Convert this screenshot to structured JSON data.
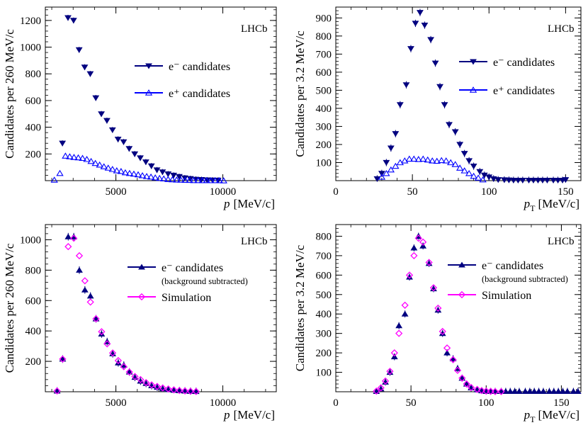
{
  "chart_data": [
    {
      "type": "scatter",
      "id": "top-left",
      "xlabel_main": "p",
      "xlabel_unit": "[MeV/c]",
      "ylabel": "Candidates per 260 MeV/c",
      "xlim": [
        1700,
        12500
      ],
      "ylim": [
        0,
        1300
      ],
      "xticks": [
        5000,
        10000
      ],
      "xtick_labels": [
        "5000",
        "10000"
      ],
      "yticks": [
        200,
        400,
        600,
        800,
        1000,
        1200
      ],
      "ytick_labels": [
        "200",
        "400",
        "600",
        "800",
        "1000",
        "1200"
      ],
      "lhcb": "LHCb",
      "legend": [
        {
          "label": "e⁻ candidates",
          "sub": "",
          "marker": "tri-down-filled",
          "color": "#000080"
        },
        {
          "label": "e⁺ candidates",
          "sub": "",
          "marker": "tri-up-open",
          "color": "#0000ff"
        }
      ],
      "series": [
        {
          "name": "e⁻ candidates",
          "marker": "tri-down-filled",
          "color": "#000080",
          "err": 22,
          "x": [
            2500,
            2760,
            3020,
            3280,
            3540,
            3800,
            4060,
            4320,
            4580,
            4840,
            5100,
            5360,
            5620,
            5880,
            6140,
            6400,
            6660,
            6920,
            7180,
            7440,
            7700,
            7960,
            8220,
            8480,
            8740,
            9000,
            9260,
            9520,
            9780
          ],
          "y": [
            280,
            1220,
            1200,
            980,
            850,
            800,
            620,
            500,
            450,
            380,
            310,
            290,
            240,
            200,
            170,
            140,
            110,
            80,
            65,
            50,
            40,
            30,
            20,
            15,
            10,
            8,
            5,
            4,
            3
          ]
        },
        {
          "name": "e⁺ candidates",
          "marker": "tri-up-open",
          "color": "#0000ff",
          "err": 0,
          "x": [
            2120,
            2380,
            2640,
            2840,
            3040,
            3240,
            3440,
            3640,
            3840,
            4040,
            4240,
            4440,
            4640,
            4840,
            5040,
            5240,
            5440,
            5640,
            5840,
            6040,
            6240,
            6440,
            6640,
            6840,
            7040,
            7240,
            7440,
            7640,
            7840,
            8040,
            8240,
            8440,
            8640,
            8840,
            9040,
            9240,
            9440,
            9640,
            9840,
            10040
          ],
          "y": [
            5,
            55,
            185,
            180,
            175,
            172,
            168,
            160,
            145,
            130,
            118,
            105,
            95,
            85,
            75,
            70,
            60,
            55,
            50,
            45,
            38,
            32,
            28,
            22,
            18,
            14,
            10,
            8,
            6,
            5,
            4,
            3,
            2,
            2,
            1,
            1,
            1,
            1,
            1,
            0
          ]
        }
      ]
    },
    {
      "type": "scatter",
      "id": "top-right",
      "xlabel_main": "p",
      "xlabel_sub": "T",
      "xlabel_unit": "[MeV/c]",
      "ylabel": "Candidates per 3.2 MeV/c",
      "xlim": [
        0,
        160
      ],
      "ylim": [
        0,
        960
      ],
      "xticks": [
        0,
        50,
        100,
        150
      ],
      "xtick_labels": [
        "0",
        "50",
        "100",
        "150"
      ],
      "yticks": [
        100,
        200,
        300,
        400,
        500,
        600,
        700,
        800,
        900
      ],
      "ytick_labels": [
        "100",
        "200",
        "300",
        "400",
        "500",
        "600",
        "700",
        "800",
        "900"
      ],
      "lhcb": "LHCb",
      "legend": [
        {
          "label": "e⁻ candidates",
          "sub": "",
          "marker": "tri-down-filled",
          "color": "#000080"
        },
        {
          "label": "e⁺ candidates",
          "sub": "",
          "marker": "tri-up-open",
          "color": "#0000ff"
        }
      ],
      "series": [
        {
          "name": "e⁻ candidates",
          "marker": "tri-down-filled",
          "color": "#000080",
          "err": 20,
          "x": [
            27,
            30,
            33,
            36,
            39,
            42,
            46,
            49,
            52,
            55,
            58,
            62,
            65,
            68,
            71,
            74,
            78,
            81,
            84,
            87,
            90,
            94,
            97,
            100,
            103,
            106,
            110,
            113,
            116,
            119,
            122,
            126,
            129,
            132,
            135,
            138,
            142,
            145,
            148,
            150
          ],
          "y": [
            10,
            40,
            100,
            180,
            260,
            420,
            530,
            730,
            870,
            930,
            860,
            780,
            650,
            520,
            420,
            310,
            270,
            200,
            150,
            110,
            80,
            50,
            30,
            20,
            10,
            5,
            4,
            3,
            2,
            2,
            2,
            2,
            2,
            2,
            2,
            2,
            2,
            2,
            2,
            5
          ]
        },
        {
          "name": "e⁺ candidates",
          "marker": "tri-up-open",
          "color": "#0000ff",
          "err": 0,
          "x": [
            30,
            33,
            36,
            39,
            42,
            45,
            48,
            51,
            54,
            57,
            60,
            63,
            66,
            69,
            72,
            75,
            78,
            81,
            84,
            87,
            90,
            93,
            96
          ],
          "y": [
            20,
            40,
            60,
            80,
            100,
            110,
            120,
            120,
            118,
            120,
            115,
            110,
            108,
            112,
            110,
            100,
            90,
            70,
            55,
            40,
            25,
            15,
            5
          ]
        }
      ]
    },
    {
      "type": "scatter",
      "id": "bottom-left",
      "xlabel_main": "p",
      "xlabel_unit": "[MeV/c]",
      "ylabel": "Candidates per 260 MeV/c",
      "xlim": [
        1700,
        12500
      ],
      "ylim": [
        0,
        1100
      ],
      "xticks": [
        5000,
        10000
      ],
      "xtick_labels": [
        "5000",
        "10000"
      ],
      "yticks": [
        200,
        400,
        600,
        800,
        1000
      ],
      "ytick_labels": [
        "200",
        "400",
        "600",
        "800",
        "1000"
      ],
      "lhcb": "LHCb",
      "legend": [
        {
          "label": "e⁻ candidates",
          "sub": "(background subtracted)",
          "marker": "tri-up-filled",
          "color": "#000080"
        },
        {
          "label": "Simulation",
          "sub": "",
          "marker": "diamond-open",
          "color": "#ff00ff"
        }
      ],
      "series": [
        {
          "name": "e⁻ candidates (background subtracted)",
          "marker": "tri-up-filled",
          "color": "#000080",
          "err": 25,
          "x": [
            2250,
            2510,
            2770,
            3030,
            3290,
            3550,
            3810,
            4070,
            4330,
            4590,
            4850,
            5110,
            5370,
            5630,
            5890,
            6150,
            6410,
            6670,
            6930,
            7190,
            7450,
            7710,
            7970,
            8230,
            8490,
            8750
          ],
          "y": [
            5,
            215,
            1020,
            1020,
            800,
            670,
            630,
            480,
            380,
            330,
            250,
            190,
            175,
            130,
            95,
            70,
            55,
            40,
            30,
            20,
            15,
            10,
            7,
            5,
            3,
            2
          ]
        },
        {
          "name": "Simulation",
          "marker": "diamond-open",
          "color": "#ff00ff",
          "err": 0,
          "x": [
            2250,
            2510,
            2770,
            3030,
            3290,
            3550,
            3810,
            4070,
            4330,
            4590,
            4850,
            5110,
            5370,
            5630,
            5890,
            6150,
            6410,
            6670,
            6930,
            7190,
            7450,
            7710,
            7970,
            8230,
            8490,
            8750
          ],
          "y": [
            5,
            215,
            955,
            1010,
            895,
            730,
            590,
            480,
            395,
            315,
            255,
            205,
            165,
            130,
            100,
            80,
            60,
            45,
            35,
            25,
            18,
            12,
            8,
            5,
            3,
            2
          ]
        }
      ]
    },
    {
      "type": "scatter",
      "id": "bottom-right",
      "xlabel_main": "p",
      "xlabel_sub": "T",
      "xlabel_unit": "[MeV/c]",
      "ylabel": "Candidates per 3.2 MeV/c",
      "xlim": [
        0,
        163
      ],
      "ylim": [
        0,
        860
      ],
      "xticks": [
        0,
        50,
        100,
        150
      ],
      "xtick_labels": [
        "0",
        "50",
        "100",
        "150"
      ],
      "yticks": [
        100,
        200,
        300,
        400,
        500,
        600,
        700,
        800
      ],
      "ytick_labels": [
        "100",
        "200",
        "300",
        "400",
        "500",
        "600",
        "700",
        "800"
      ],
      "lhcb": "LHCb",
      "legend": [
        {
          "label": "e⁻ candidates",
          "sub": "(background subtracted)",
          "marker": "tri-up-filled",
          "color": "#000080"
        },
        {
          "label": "Simulation",
          "sub": "",
          "marker": "diamond-open",
          "color": "#ff00ff"
        }
      ],
      "series": [
        {
          "name": "e⁻ candidates (background subtracted)",
          "marker": "tri-up-filled",
          "color": "#000080",
          "err": 18,
          "x": [
            27,
            30,
            33,
            36,
            39,
            42,
            46,
            49,
            52,
            55,
            58,
            62,
            65,
            68,
            71,
            74,
            78,
            81,
            84,
            87,
            90,
            94,
            97,
            100,
            103,
            106,
            110,
            113,
            116,
            119,
            122,
            126,
            129,
            132,
            135,
            138,
            142,
            145,
            148,
            151,
            154,
            158,
            161
          ],
          "y": [
            2,
            15,
            50,
            100,
            180,
            340,
            400,
            590,
            740,
            800,
            750,
            660,
            530,
            420,
            300,
            200,
            170,
            120,
            70,
            40,
            20,
            10,
            5,
            2,
            2,
            2,
            2,
            2,
            2,
            2,
            2,
            2,
            2,
            2,
            2,
            2,
            2,
            2,
            2,
            2,
            2,
            2,
            2
          ]
        },
        {
          "name": "Simulation",
          "marker": "diamond-open",
          "color": "#ff00ff",
          "err": 0,
          "x": [
            27,
            30,
            33,
            36,
            39,
            42,
            46,
            49,
            52,
            55,
            58,
            62,
            65,
            68,
            71,
            74,
            78,
            81,
            84,
            87,
            90,
            94,
            97,
            100,
            103,
            106,
            110
          ],
          "y": [
            3,
            20,
            55,
            105,
            200,
            300,
            445,
            600,
            700,
            790,
            770,
            665,
            535,
            430,
            310,
            225,
            165,
            110,
            70,
            40,
            22,
            12,
            6,
            3,
            2,
            1,
            1
          ]
        }
      ]
    }
  ]
}
